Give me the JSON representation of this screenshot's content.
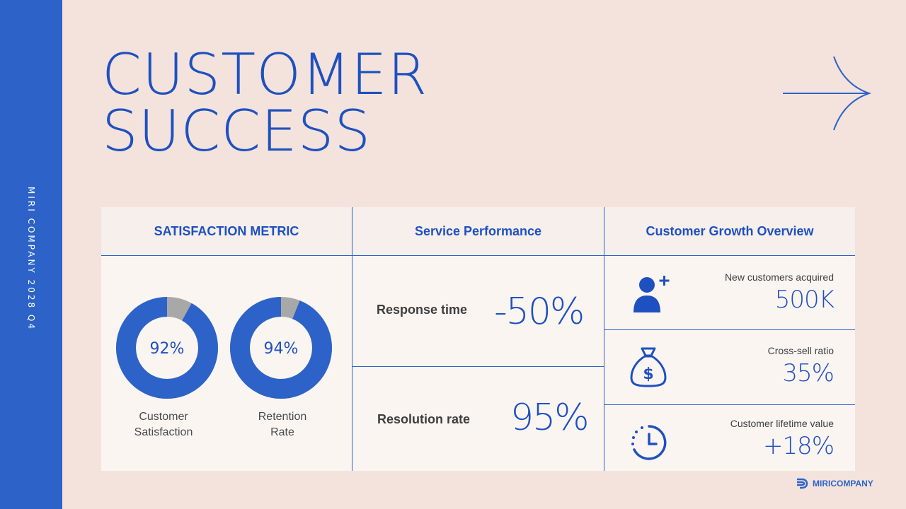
{
  "sidebar": {
    "text": "MIRI COMPANY 2028 Q4"
  },
  "title": {
    "line1": "CUSTOMER",
    "line2": "SUCCESS"
  },
  "columns": {
    "satisfaction": "SATISFACTION METRIC",
    "performance": "Service Performance",
    "growth": "Customer Growth Overview"
  },
  "satisfaction": [
    {
      "value_label": "92%",
      "value": 92,
      "label": "Customer\nSatisfaction"
    },
    {
      "value_label": "94%",
      "value": 94,
      "label": "Retention\nRate"
    }
  ],
  "performance": [
    {
      "label": "Response time",
      "value": "-50%"
    },
    {
      "label": "Resolution rate",
      "value": "95%"
    }
  ],
  "growth": [
    {
      "label": "New customers acquired",
      "value": "500K",
      "icon": "add-user-icon"
    },
    {
      "label": "Cross-sell ratio",
      "value": "35%",
      "icon": "money-bag-icon"
    },
    {
      "label": "Customer lifetime value",
      "value": "+18%",
      "icon": "clock-history-icon"
    }
  ],
  "brand": {
    "name": "MIRICOMPANY",
    "icon": "logo-icon"
  },
  "colors": {
    "primary": "#2d63c8",
    "title": "#1f50c0",
    "background": "#f3e3dc",
    "donut_remainder": "#a8a8a8"
  }
}
